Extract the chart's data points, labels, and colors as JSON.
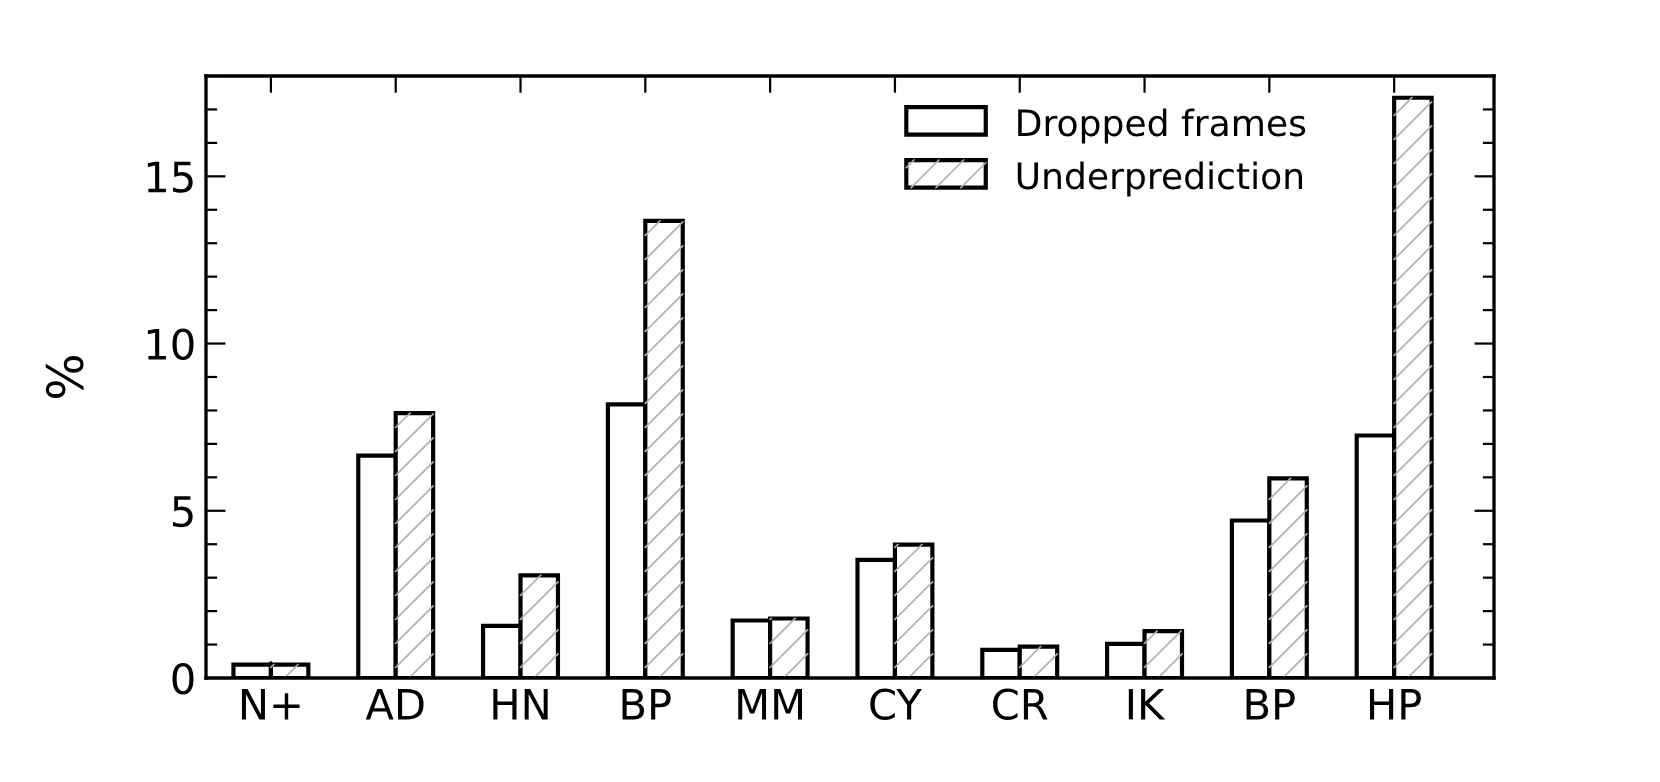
{
  "chart_data": {
    "type": "bar",
    "ylabel": "%",
    "categories": [
      "N+",
      "AD",
      "HN",
      "BP",
      "MM",
      "CY",
      "CR",
      "IK",
      "BP",
      "HP"
    ],
    "series": [
      {
        "name": "Dropped frames",
        "color": "#ffffff",
        "values": [
          0.4,
          6.65,
          1.56,
          8.18,
          1.72,
          3.53,
          0.84,
          1.02,
          4.71,
          7.25
        ]
      },
      {
        "name": "Underprediction",
        "color": "#ffffff",
        "values": [
          0.4,
          7.92,
          3.07,
          13.67,
          1.78,
          3.99,
          0.94,
          1.4,
          5.97,
          17.35
        ]
      }
    ],
    "ylim": [
      0,
      18
    ],
    "yticks": [
      0,
      {
        "value": 1,
        "label": null
      },
      {
        "value": 2,
        "label": null
      },
      {
        "value": 3,
        "label": null
      },
      {
        "value": 4,
        "label": null
      },
      5,
      {
        "value": 6,
        "label": null
      },
      {
        "value": 7,
        "label": null
      },
      {
        "value": 8,
        "label": null
      },
      {
        "value": 9,
        "label": null
      },
      10,
      {
        "value": 11,
        "label": null
      },
      {
        "value": 12,
        "label": null
      },
      {
        "value": 13,
        "label": null
      },
      {
        "value": 14,
        "label": null
      },
      15,
      {
        "value": 16,
        "label": null
      },
      {
        "value": 17,
        "label": null
      },
      {
        "value": 18,
        "label": null
      }
    ],
    "grid": false,
    "legend": "top right"
  }
}
